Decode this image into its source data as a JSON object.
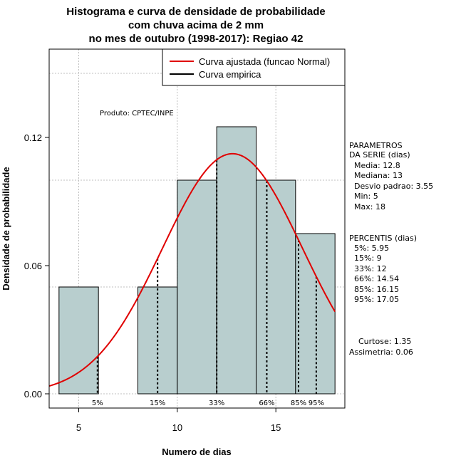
{
  "chart_data": {
    "type": "bar",
    "title_lines": [
      "Histograma e curva de densidade de probabilidade",
      "com chuva acima de 2 mm",
      "no mes de outubro (1998-2017): Regiao 42"
    ],
    "xlabel": "Numero de dias",
    "ylabel": "Densidade de probabilidade",
    "xlim": [
      3.5,
      18.5
    ],
    "ylim": [
      0,
      0.155
    ],
    "x_ticks": [
      5,
      10,
      15
    ],
    "y_ticks": [
      0.0,
      0.06,
      0.12
    ],
    "y_tick_labels": [
      "0.00",
      "0.06",
      "0.12"
    ],
    "grid": true,
    "bar_color": "#b8cece",
    "histogram": [
      {
        "x0": 4,
        "x1": 6,
        "density": 0.05
      },
      {
        "x0": 6,
        "x1": 8,
        "density": 0.0
      },
      {
        "x0": 8,
        "x1": 10,
        "density": 0.05
      },
      {
        "x0": 10,
        "x1": 12,
        "density": 0.1
      },
      {
        "x0": 12,
        "x1": 14,
        "density": 0.125
      },
      {
        "x0": 14,
        "x1": 16,
        "density": 0.1
      },
      {
        "x0": 16,
        "x1": 18,
        "density": 0.075
      }
    ],
    "normal_curve": {
      "mean": 12.8,
      "sd": 3.55,
      "color": "#e00000"
    },
    "percentile_lines": [
      {
        "label": "5%",
        "x": 5.95
      },
      {
        "label": "15%",
        "x": 9
      },
      {
        "label": "33%",
        "x": 12
      },
      {
        "label": "66%",
        "x": 14.54
      },
      {
        "label": "85%",
        "x": 16.15
      },
      {
        "label": "95%",
        "x": 17.05
      }
    ],
    "legend": {
      "position": "top-right",
      "entries": [
        {
          "label": "Curva ajustada (funcao Normal)",
          "color": "#e00000"
        },
        {
          "label": "Curva empirica",
          "color": "#000000"
        }
      ]
    },
    "annotation": "Produto: CPTEC/INPE"
  },
  "side_panel": {
    "params_title": [
      "PARAMETROS",
      "DA SERIE (dias)"
    ],
    "params": [
      "Media: 12.8",
      "Mediana: 13",
      "Desvio padrao: 3.55",
      "Min: 5",
      "Max: 18"
    ],
    "percentis_title": "PERCENTIS (dias)",
    "percentis": [
      "5%: 5.95",
      "15%: 9",
      "33%: 12",
      "66%: 14.54",
      "85%: 16.15",
      "95%: 17.05"
    ],
    "stats": [
      "Curtose: 1.35",
      "Assimetria: 0.06"
    ]
  }
}
